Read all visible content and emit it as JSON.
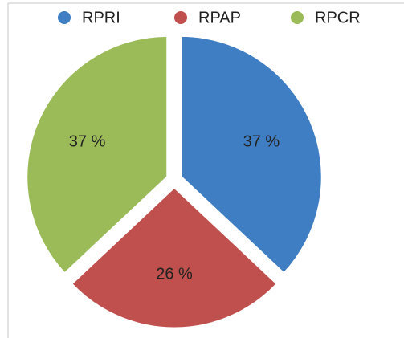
{
  "chart_data": {
    "type": "pie",
    "categories": [
      "RPRI",
      "RPAP",
      "RPCR"
    ],
    "values": [
      37,
      26,
      37
    ],
    "value_labels": [
      "37 %",
      "26 %",
      "37 %"
    ],
    "colors": [
      "#3f7ec2",
      "#c0504d",
      "#9bbb59"
    ],
    "legend": "top"
  }
}
